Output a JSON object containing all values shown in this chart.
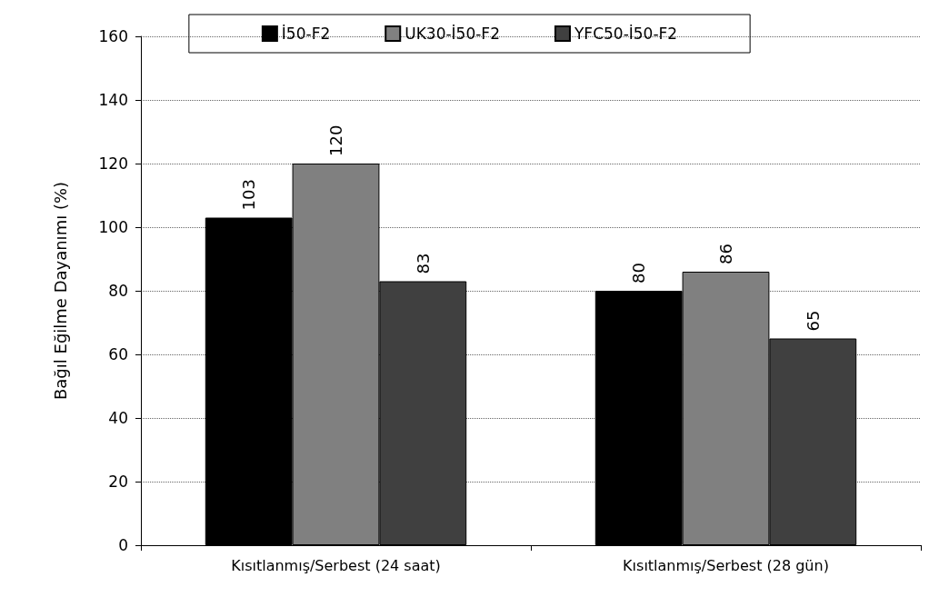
{
  "chart_data": {
    "type": "bar",
    "ylabel": "Bağıl Eğilme Dayanımı (%)",
    "categories": [
      "Kısıtlanmış/Serbest (24 saat)",
      "Kısıtlanmış/Serbest (28 gün)"
    ],
    "series": [
      {
        "name": "İ50-F2",
        "color": "#000000",
        "values": [
          103,
          80
        ]
      },
      {
        "name": "UK30-İ50-F2",
        "color": "#808080",
        "values": [
          120,
          86
        ]
      },
      {
        "name": "YFC50-İ50-F2",
        "color": "#404040",
        "values": [
          83,
          65
        ]
      }
    ],
    "ylim": [
      0,
      160
    ],
    "yticks": [
      0,
      20,
      40,
      60,
      80,
      100,
      120,
      140,
      160
    ],
    "grid": "y",
    "legend": "top",
    "data_labels": true
  }
}
